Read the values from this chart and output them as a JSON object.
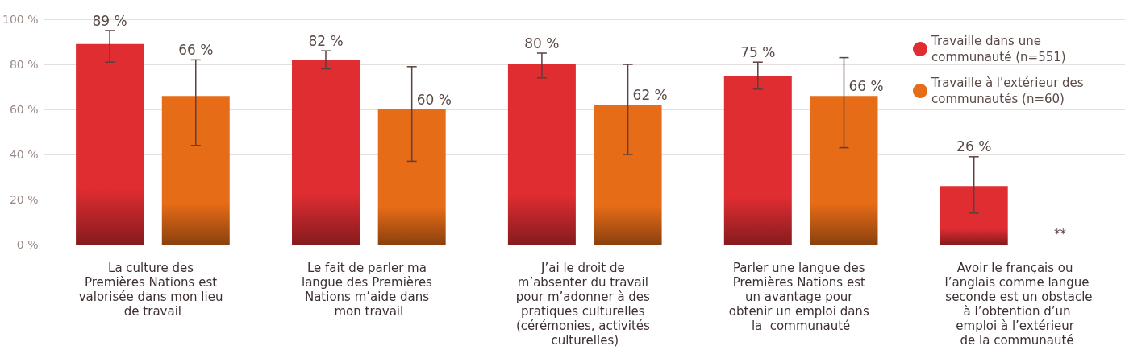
{
  "chart_data": {
    "type": "bar",
    "categories": [
      "La culture des Premières Nations est valorisée dans mon lieu de travail",
      "Le fait de parler ma langue des Premières Nations m’aide dans mon travail",
      "J’ai le droit de m’absenter du travail pour m’adonner à des pratiques culturelles (cérémonies, activités culturelles)",
      "Parler une langue des Premières Nations est un avantage pour obtenir un emploi dans la  communauté",
      "Avoir le français ou l’anglais comme langue seconde est un obstacle à l’obtention d’un emploi à l’extérieur de la communauté"
    ],
    "series": [
      {
        "name": "Travaille dans une communauté (n=551)",
        "color": "#e02d32",
        "values": [
          89,
          82,
          80,
          75,
          26
        ],
        "value_labels": [
          "89 %",
          "82 %",
          "80 %",
          "75 %",
          "26 %"
        ],
        "errors": [
          [
            81,
            95
          ],
          [
            78,
            86
          ],
          [
            74,
            85
          ],
          [
            69,
            81
          ],
          [
            14,
            39
          ]
        ]
      },
      {
        "name": "Travaille à l'extérieur des communautés (n=60)",
        "color": "#e76c17",
        "values": [
          66,
          60,
          62,
          66,
          null
        ],
        "value_labels": [
          "66 %",
          "60 %",
          "62 %",
          "66 %",
          null
        ],
        "errors": [
          [
            44,
            82
          ],
          [
            37,
            79
          ],
          [
            40,
            80
          ],
          [
            43,
            83
          ],
          null
        ]
      }
    ],
    "ylim": [
      0,
      100
    ],
    "yticks": [
      {
        "value": 0,
        "label": "0 %"
      },
      {
        "value": 20,
        "label": "20 %"
      },
      {
        "value": 40,
        "label": "40 %"
      },
      {
        "value": 60,
        "label": "60 %"
      },
      {
        "value": 80,
        "label": "80 %"
      },
      {
        "value": 100,
        "label": "100 %"
      }
    ],
    "grid": "y",
    "legend": "top right",
    "annotations": [
      "**"
    ]
  }
}
